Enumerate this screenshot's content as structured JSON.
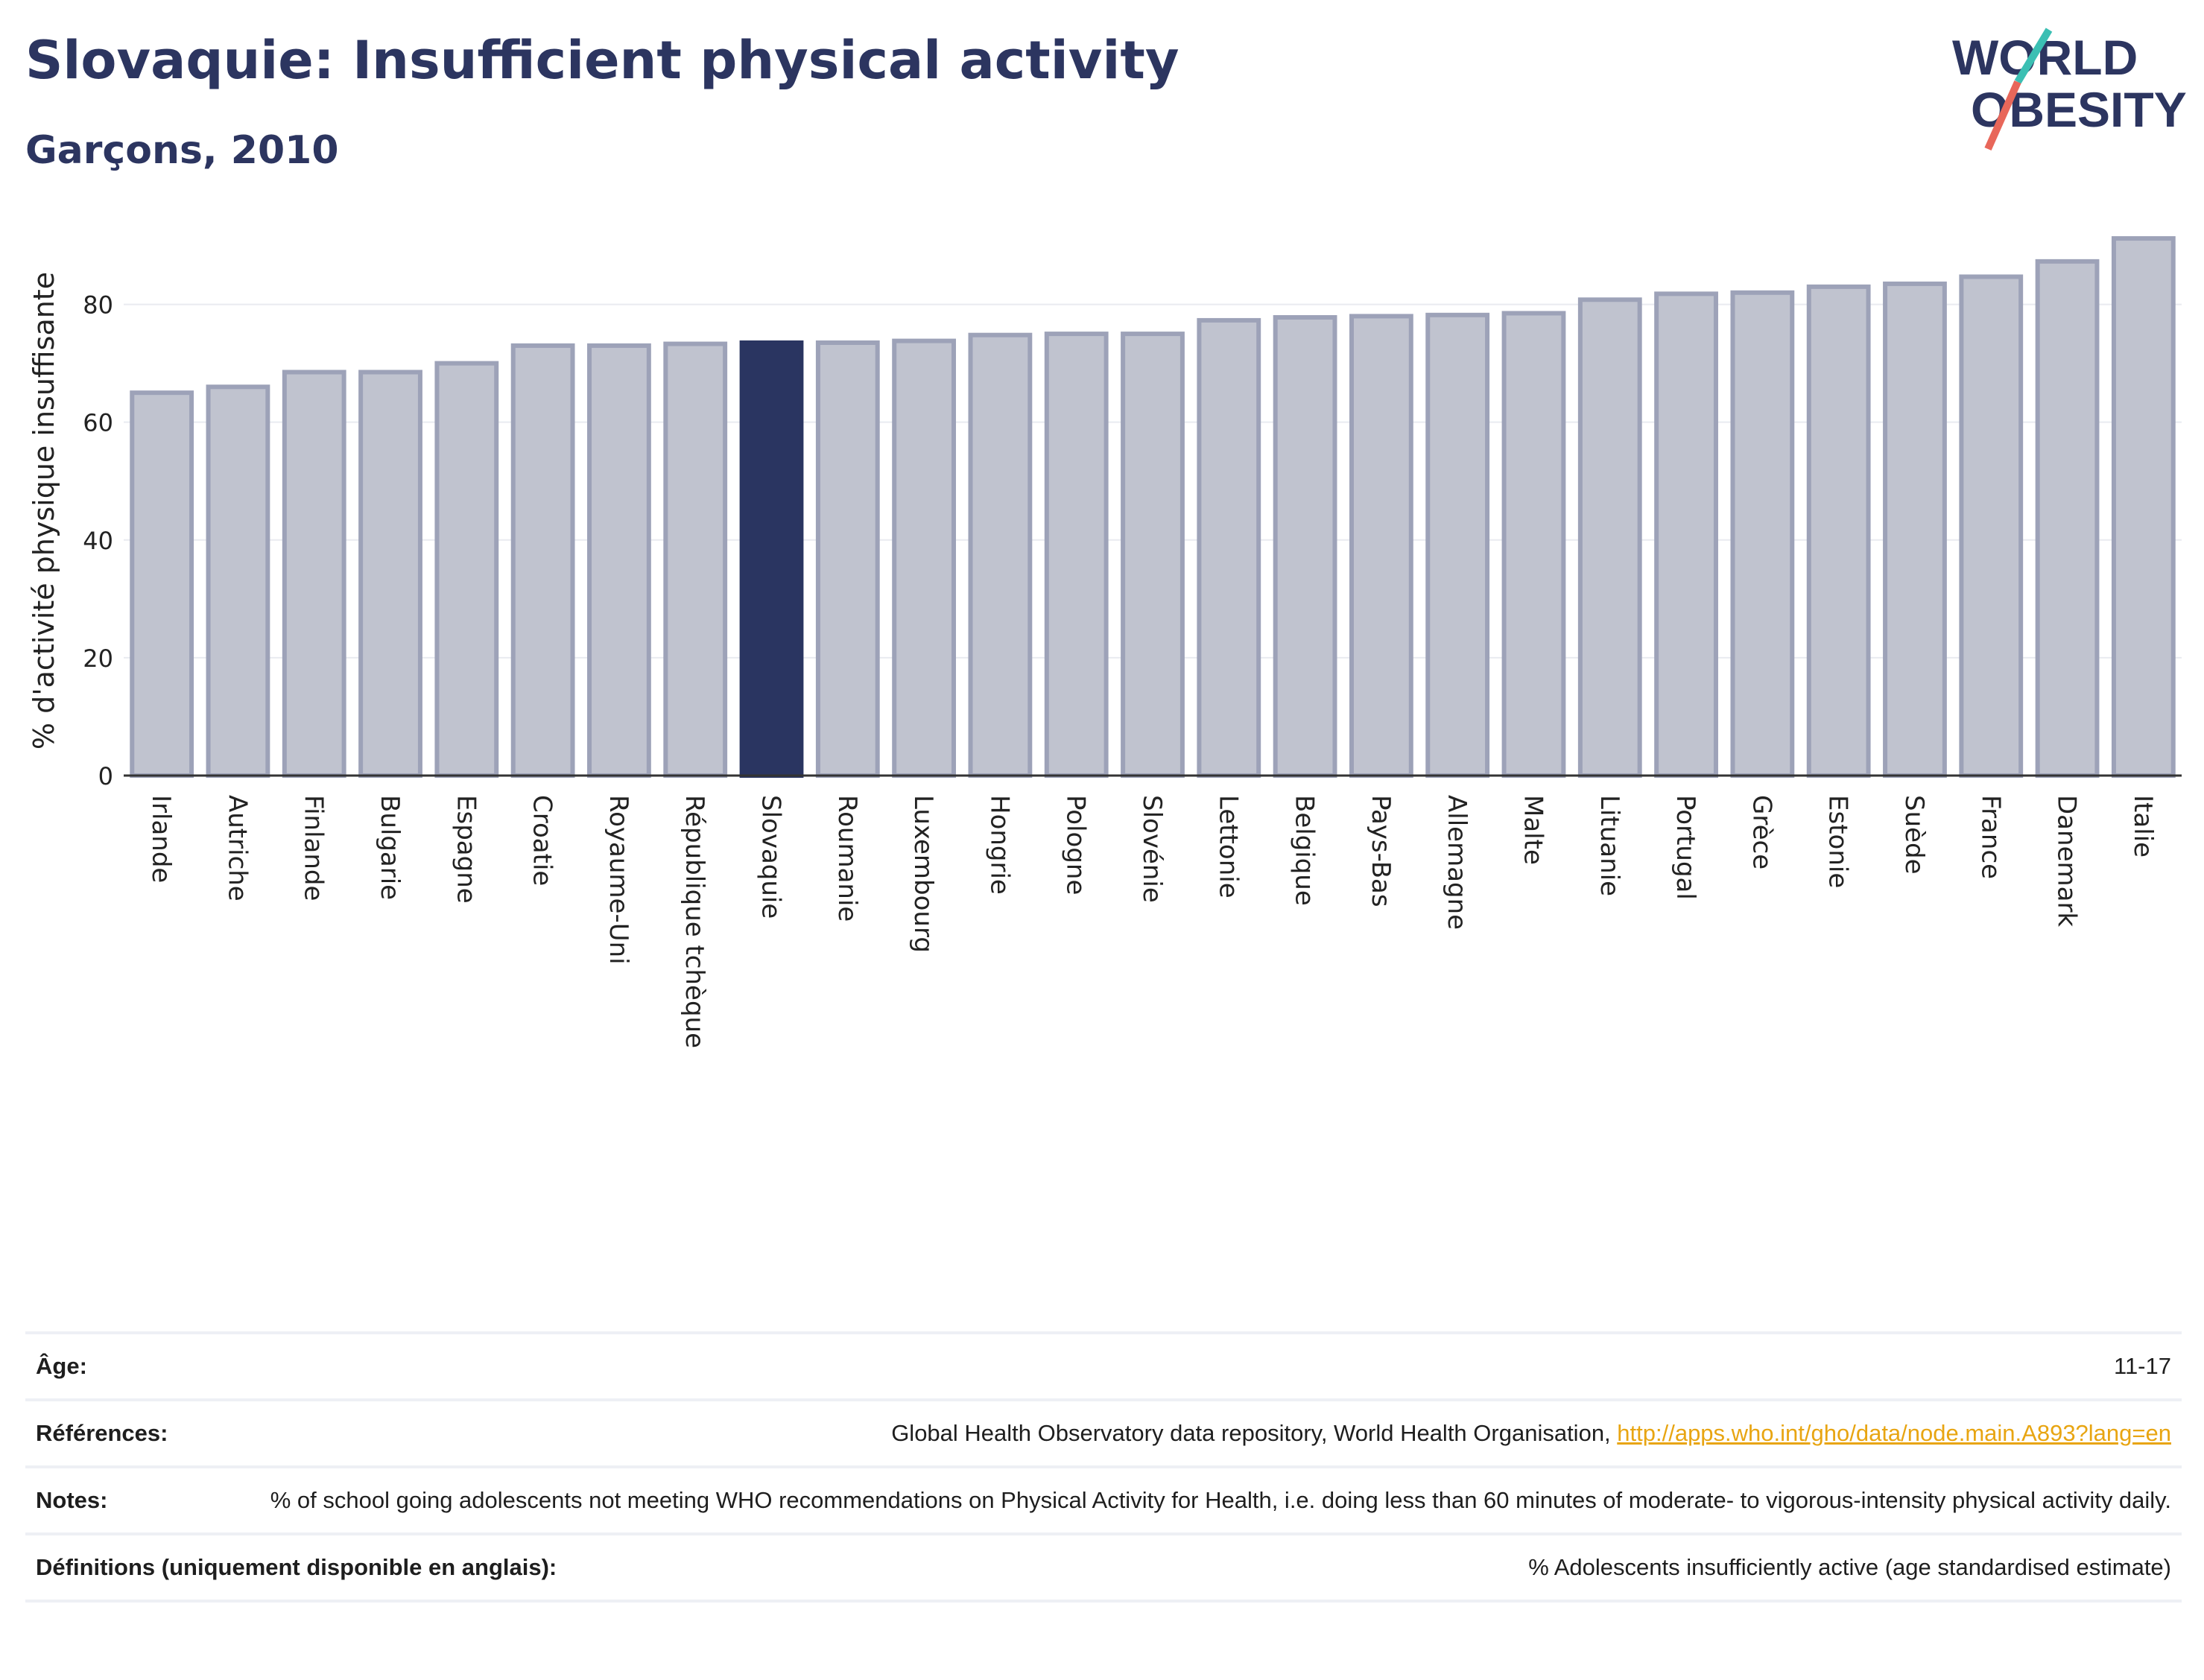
{
  "header": {
    "title": "Slovaquie: Insufficient physical activity",
    "subtitle": "Garçons, 2010"
  },
  "logo": {
    "line1": "WORLD",
    "line2": "OBESITY"
  },
  "colors": {
    "highlight": "#2a3561",
    "bar_fill": "#c0c3cf",
    "bar_stroke": "#9da2b8",
    "title": "#2c3560",
    "link": "#e8a512"
  },
  "chart_data": {
    "type": "bar",
    "categories": [
      "Irlande",
      "Autriche",
      "Finlande",
      "Bulgarie",
      "Espagne",
      "Croatie",
      "Royaume-Uni",
      "République tchèque",
      "Slovaquie",
      "Roumanie",
      "Luxembourg",
      "Hongrie",
      "Pologne",
      "Slovénie",
      "Lettonie",
      "Belgique",
      "Pays-Bas",
      "Allemagne",
      "Malte",
      "Lituanie",
      "Portugal",
      "Grèce",
      "Estonie",
      "Suède",
      "France",
      "Danemark",
      "Italie"
    ],
    "values": [
      65,
      66,
      68.5,
      68.5,
      70,
      73,
      73,
      73.3,
      73.5,
      73.5,
      73.8,
      74.8,
      75,
      75,
      77.3,
      77.8,
      78,
      78.2,
      78.5,
      80.8,
      81.8,
      82,
      83,
      83.5,
      84.7,
      87.3,
      91.2
    ],
    "highlight": "Slovaquie",
    "ylabel": "% d'activité physique insuffisante",
    "ylim": [
      0,
      95
    ],
    "yticks": [
      0,
      20,
      40,
      60,
      80
    ],
    "grid": true
  },
  "meta": {
    "age_label": "Âge:",
    "age_value": "11-17",
    "ref_label": "Références:",
    "ref_text": "Global Health Observatory data repository, World Health Organisation, ",
    "ref_link": "http://apps.who.int/gho/data/node.main.A893?lang=en",
    "notes_label": "Notes:",
    "notes_value": "% of school going adolescents not meeting WHO recommendations on Physical Activity for Health, i.e. doing less than 60 minutes of moderate- to vigorous-intensity physical activity daily.",
    "def_label": "Définitions (uniquement disponible en anglais):",
    "def_value": "% Adolescents insufficiently active (age standardised estimate)"
  }
}
